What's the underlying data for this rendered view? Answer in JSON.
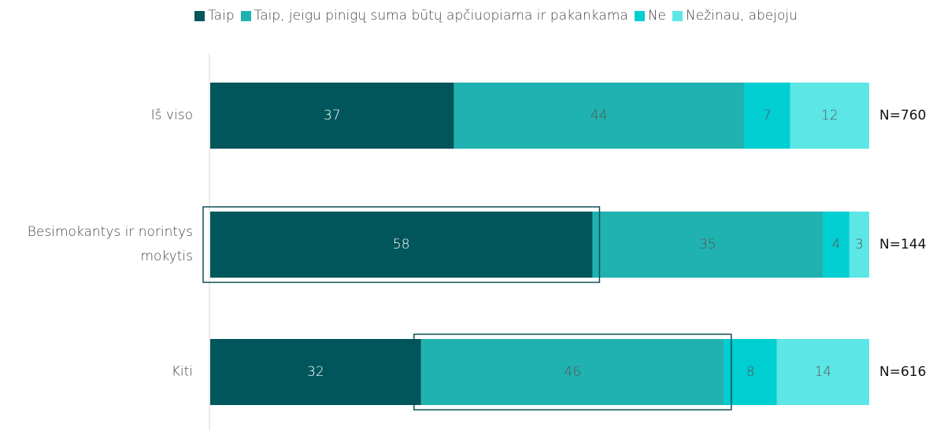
{
  "chart_data": {
    "type": "stacked-bar-horizontal",
    "categories": [
      "Iš viso",
      "Besimokantys ir norintys mokytis",
      "Kiti"
    ],
    "series": [
      {
        "name": "Taip",
        "color": "#00565a",
        "values": [
          37,
          58,
          32
        ]
      },
      {
        "name": "Taip, jeigu pinigų suma būtų apčiuopiama ir pakankama",
        "color": "#20b2b0",
        "values": [
          44,
          35,
          46
        ]
      },
      {
        "name": "Ne",
        "color": "#00ced1",
        "values": [
          7,
          4,
          8
        ]
      },
      {
        "name": "Nežinau, abejoju",
        "color": "#5ce6e6",
        "values": [
          12,
          3,
          14
        ]
      }
    ],
    "n_labels": [
      "N=760",
      "N=144",
      "N=616"
    ],
    "xlim": [
      0,
      100
    ]
  }
}
